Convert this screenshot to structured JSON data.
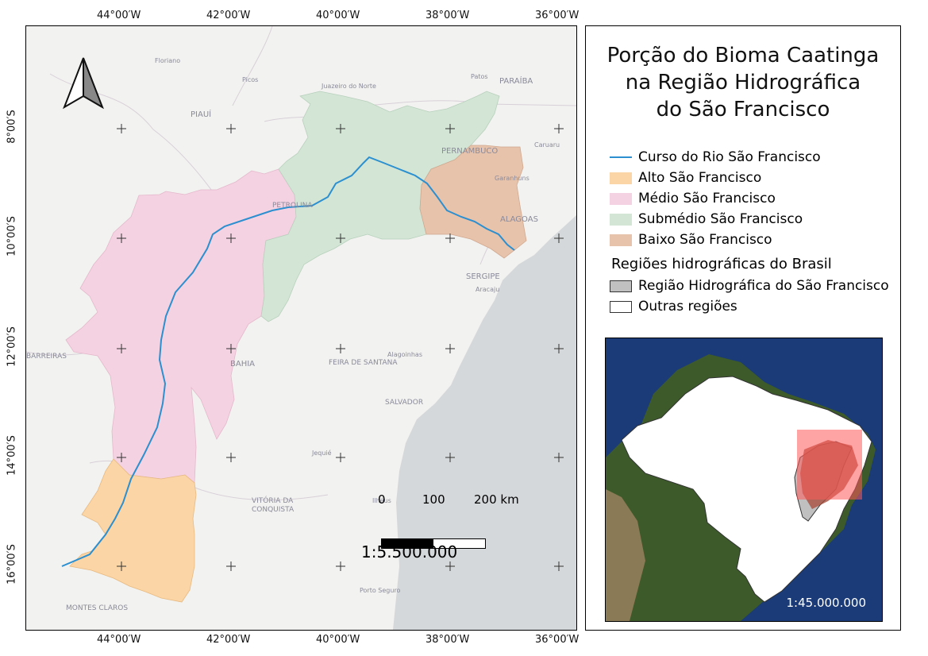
{
  "title": [
    "Porção do Bioma Caatinga",
    "na Região Hidrográfica",
    "do São Francisco"
  ],
  "legend": {
    "river": {
      "label": "Curso do Rio São Francisco",
      "color": "#2b8fd0"
    },
    "regions": [
      {
        "label": "Alto São Francisco",
        "color": "#fbd5a5"
      },
      {
        "label": "Médio São Francisco",
        "color": "#f5d2e2"
      },
      {
        "label": "Submédio São Francisco",
        "color": "#d3e6d6"
      },
      {
        "label": "Baixo São Francisco",
        "color": "#e8c3ac"
      }
    ],
    "subtitle": "Regiões hidrográficas do Brasil",
    "hydro": [
      {
        "label": "Região Hidrográfica do São Francisco",
        "color": "#c0c0c0"
      },
      {
        "label": "Outras regiões",
        "color": "#ffffff"
      }
    ]
  },
  "axis": {
    "top": [
      "44°00′W",
      "42°00′W",
      "40°00′W",
      "38°00′W",
      "36°00′W"
    ],
    "bottom": [
      "44°00′W",
      "42°00′W",
      "40°00′W",
      "38°00′W",
      "36°00′W"
    ],
    "left": [
      "8°00′S",
      "10°00′S",
      "12°00′S",
      "14°00′S",
      "16°00′S"
    ]
  },
  "scale_bar": {
    "labels": [
      "0",
      "100",
      "200 km"
    ],
    "ratio": "1:5.500.000"
  },
  "inset_scale": "1:45.000.000",
  "place_names": {
    "piaui": "PIAUÍ",
    "bahia": "BAHIA",
    "pernambuco": "PERNAMBUCO",
    "paraiba": "PARAÍBA",
    "alagoas": "ALAGOAS",
    "sergipe": "SERGIPE",
    "feira": "FEIRA DE SANTANA",
    "salvador": "SALVADOR",
    "conquista1": "VITÓRIA DA",
    "conquista2": "CONQUISTA",
    "montes": "MONTES CLAROS",
    "barreiras": "BARREIRAS",
    "petrolina": "PETROLINA",
    "floriano": "Floriano",
    "picos": "Picos",
    "juazeiro": "Juazeiro do Norte",
    "patos": "Patos",
    "caruaru": "Caruaru",
    "garanhuns": "Garanhuns",
    "aracaju": "Aracaju",
    "alagoinhas": "Alagoinhas",
    "jequie": "Jequié",
    "ilheus": "Ilhéus",
    "porto": "Porto Seguro"
  },
  "colors": {
    "ocean": "#d5d8da",
    "land": "#f2f2f0",
    "river": "#2b8fd0"
  }
}
